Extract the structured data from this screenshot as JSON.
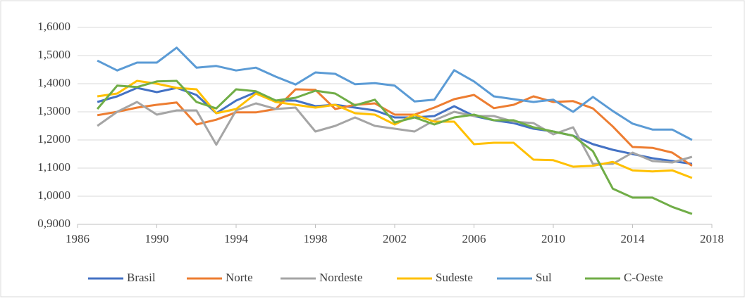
{
  "chart_data": {
    "type": "line",
    "x": [
      1987,
      1988,
      1989,
      1990,
      1991,
      1992,
      1993,
      1994,
      1995,
      1996,
      1997,
      1998,
      1999,
      2000,
      2001,
      2002,
      2003,
      2004,
      2005,
      2006,
      2007,
      2008,
      2009,
      2010,
      2011,
      2012,
      2013,
      2014,
      2015,
      2016,
      2017
    ],
    "xlim": [
      1986,
      2018
    ],
    "xticks": [
      1986,
      1990,
      1994,
      1998,
      2002,
      2006,
      2010,
      2014,
      2018
    ],
    "ylim": [
      0.9,
      1.6
    ],
    "yticks": [
      {
        "value": 0.9,
        "label": "0,9000"
      },
      {
        "value": 1.0,
        "label": "1,0000"
      },
      {
        "value": 1.1,
        "label": "1,1000"
      },
      {
        "value": 1.2,
        "label": "1,2000"
      },
      {
        "value": 1.3,
        "label": "1,3000"
      },
      {
        "value": 1.4,
        "label": "1,4000"
      },
      {
        "value": 1.5,
        "label": "1,5000"
      },
      {
        "value": 1.6,
        "label": "1,6000"
      }
    ],
    "grid": true,
    "legend": "bottom",
    "series": [
      {
        "name": "Brasil",
        "color": "#4472c4",
        "values": [
          1.335,
          1.355,
          1.385,
          1.37,
          1.385,
          1.36,
          1.295,
          1.34,
          1.37,
          1.34,
          1.34,
          1.32,
          1.325,
          1.315,
          1.305,
          1.28,
          1.28,
          1.285,
          1.32,
          1.285,
          1.27,
          1.26,
          1.24,
          1.23,
          1.215,
          1.185,
          1.165,
          1.15,
          1.135,
          1.125,
          1.115
        ]
      },
      {
        "name": "Norte",
        "color": "#ed7d31",
        "values": [
          1.288,
          1.3,
          1.315,
          1.325,
          1.333,
          1.255,
          1.272,
          1.298,
          1.298,
          1.31,
          1.38,
          1.378,
          1.31,
          1.325,
          1.33,
          1.29,
          1.29,
          1.315,
          1.345,
          1.36,
          1.313,
          1.325,
          1.355,
          1.335,
          1.338,
          1.312,
          1.248,
          1.175,
          1.172,
          1.155,
          1.108
        ]
      },
      {
        "name": "Nordeste",
        "color": "#a5a5a5",
        "values": [
          1.25,
          1.3,
          1.335,
          1.29,
          1.305,
          1.305,
          1.183,
          1.305,
          1.33,
          1.31,
          1.315,
          1.23,
          1.25,
          1.28,
          1.25,
          1.24,
          1.23,
          1.27,
          1.3,
          1.285,
          1.285,
          1.265,
          1.26,
          1.22,
          1.245,
          1.115,
          1.115,
          1.155,
          1.125,
          1.12,
          1.14
        ]
      },
      {
        "name": "Sudeste",
        "color": "#ffc000",
        "values": [
          1.355,
          1.365,
          1.41,
          1.4,
          1.385,
          1.38,
          1.295,
          1.31,
          1.365,
          1.335,
          1.325,
          1.315,
          1.325,
          1.295,
          1.29,
          1.255,
          1.29,
          1.265,
          1.265,
          1.185,
          1.19,
          1.19,
          1.13,
          1.128,
          1.105,
          1.108,
          1.122,
          1.092,
          1.088,
          1.092,
          1.065
        ]
      },
      {
        "name": "Sul",
        "color": "#5b9bd5",
        "values": [
          1.482,
          1.447,
          1.475,
          1.475,
          1.528,
          1.457,
          1.463,
          1.447,
          1.457,
          1.425,
          1.397,
          1.44,
          1.435,
          1.398,
          1.402,
          1.393,
          1.337,
          1.343,
          1.448,
          1.408,
          1.355,
          1.345,
          1.335,
          1.343,
          1.3,
          1.353,
          1.303,
          1.258,
          1.237,
          1.237,
          1.2
        ]
      },
      {
        "name": "C-Oeste",
        "color": "#70ad47",
        "values": [
          1.31,
          1.393,
          1.388,
          1.408,
          1.41,
          1.335,
          1.312,
          1.38,
          1.373,
          1.34,
          1.35,
          1.375,
          1.365,
          1.323,
          1.343,
          1.262,
          1.28,
          1.255,
          1.28,
          1.29,
          1.27,
          1.27,
          1.245,
          1.23,
          1.215,
          1.16,
          1.027,
          0.995,
          0.995,
          0.962,
          0.937
        ]
      }
    ]
  }
}
